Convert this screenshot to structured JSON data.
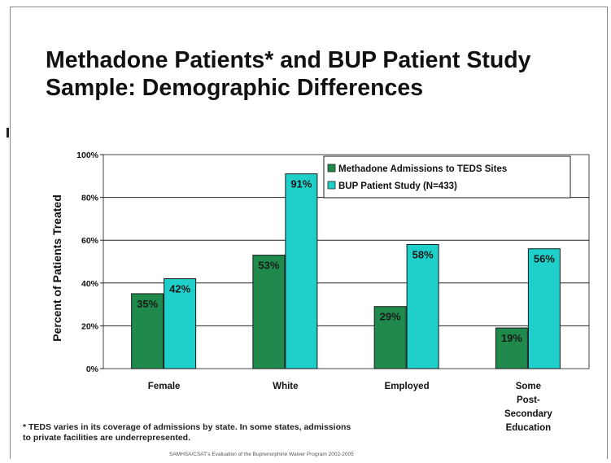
{
  "slide": {
    "title_line1": "Methadone Patients* and BUP Patient Study",
    "title_line2": "Sample: Demographic Differences",
    "footnote_line1": "* TEDS varies in its coverage of admissions by state.  In some states, admissions",
    "footnote_line2": "to private facilities are underrepresented.",
    "source": "SAMHSA/CSAT's Evaluation of the Buprenorphine Waiver Program 2002-2005"
  },
  "chart_data": {
    "type": "bar",
    "title": "Methadone Patients* and BUP Patient Study Sample: Demographic Differences",
    "xlabel": "",
    "ylabel": "Percent of Patients Treated",
    "ylim": [
      0,
      100
    ],
    "yticks": [
      "0%",
      "20%",
      "40%",
      "60%",
      "80%",
      "100%"
    ],
    "grid": true,
    "legend_position": "top-right",
    "categories": [
      [
        "Female"
      ],
      [
        "White"
      ],
      [
        "Employed"
      ],
      [
        "Some",
        "Post-",
        "Secondary",
        "Education"
      ]
    ],
    "series": [
      {
        "name": "Methadone Admissions to TEDS Sites",
        "color": "#1f8a4c",
        "values": [
          35,
          53,
          29,
          19
        ],
        "labels": [
          "35%",
          "53%",
          "29%",
          "19%"
        ]
      },
      {
        "name": "BUP Patient Study (N=433)",
        "color": "#1fcfc9",
        "values": [
          42,
          91,
          58,
          56
        ],
        "labels": [
          "42%",
          "91%",
          "58%",
          "56%"
        ]
      }
    ]
  }
}
